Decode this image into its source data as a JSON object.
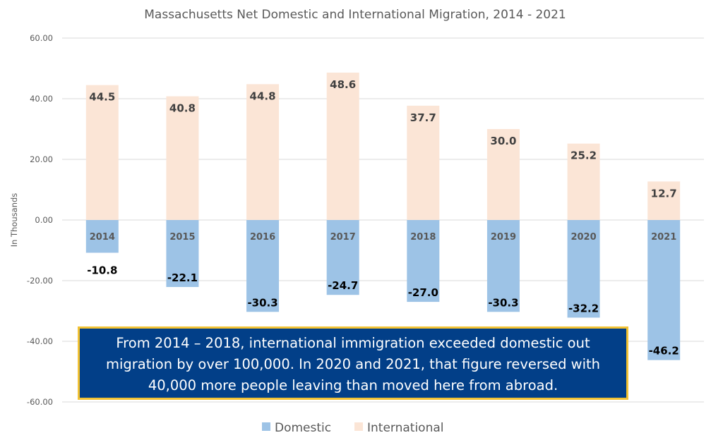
{
  "chart_data": {
    "type": "bar",
    "stacked": true,
    "title": "Massachusetts Net Domestic and International Migration, 2014 - 2021",
    "xlabel": "",
    "ylabel": "In Thousands",
    "ylim": [
      -60,
      60
    ],
    "yticks": [
      60,
      40,
      20,
      0,
      -20,
      -40,
      -60
    ],
    "ytick_labels": [
      "60.00",
      "40.00",
      "20.00",
      "0.00",
      "-20.00",
      "-40.00",
      "-60.00"
    ],
    "grid": true,
    "legend_position": "bottom",
    "categories": [
      "2014",
      "2015",
      "2016",
      "2017",
      "2018",
      "2019",
      "2020",
      "2021"
    ],
    "series": [
      {
        "name": "Domestic",
        "color": "#9dc3e6",
        "values": [
          -10.8,
          -22.1,
          -30.3,
          -24.7,
          -27.0,
          -30.3,
          -32.2,
          -46.2
        ],
        "labels": [
          "-10.8",
          "-22.1",
          "-30.3",
          "-24.7",
          "-27.0",
          "-30.3",
          "-32.2",
          "-46.2"
        ]
      },
      {
        "name": "International",
        "color": "#fbe5d6",
        "values": [
          44.5,
          40.8,
          44.8,
          48.6,
          37.7,
          30.0,
          25.2,
          12.7
        ],
        "labels": [
          "44.5",
          "40.8",
          "44.8",
          "48.6",
          "37.7",
          "30.0",
          "25.2",
          "12.7"
        ]
      }
    ],
    "annotation": {
      "lines": [
        "From 2014 – 2018, international immigration exceeded domestic out",
        "migration by over 100,000. In 2020 and 2021, that figure reversed with",
        "40,000 more people leaving than moved here from abroad."
      ],
      "background": "#023f88",
      "border": "#f2c233"
    }
  }
}
